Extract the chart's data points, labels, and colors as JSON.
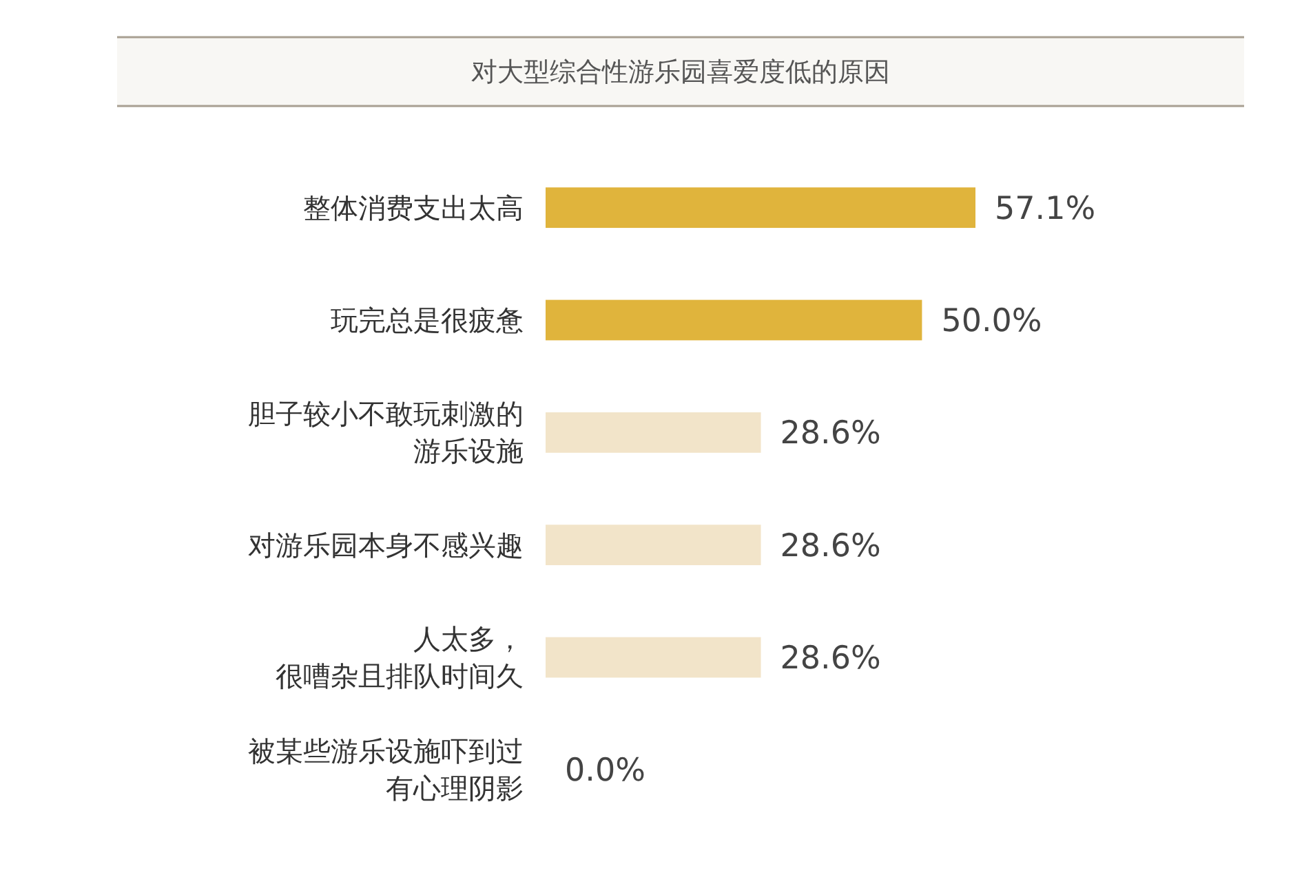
{
  "chart_data": {
    "type": "bar",
    "orientation": "horizontal",
    "title": "对大型综合性游乐园喜爱度低的原因",
    "categories": [
      "整体消费支出太高",
      "玩完总是很疲惫",
      "胆子较小不敢玩刺激的游乐设施",
      "对游乐园本身不感兴趣",
      "人太多，很嘈杂且排队时间久",
      "被某些游乐设施吓到过有心理阴影"
    ],
    "values": [
      57.1,
      50.0,
      28.6,
      28.6,
      28.6,
      0.0
    ],
    "colors": [
      "#e0b43c",
      "#e0b43c",
      "#f2e4c9",
      "#f2e4c9",
      "#f2e4c9",
      "#f2e4c9"
    ],
    "value_labels": [
      "57.1%",
      "50.0%",
      "28.6%",
      "28.6%",
      "28.6%",
      "0.0%"
    ]
  }
}
